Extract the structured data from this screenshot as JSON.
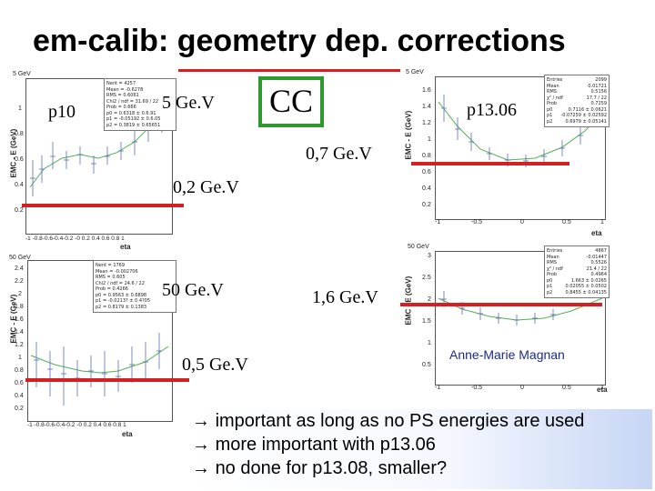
{
  "title": "em-calib: geometry dep. corrections",
  "labels": {
    "p10": "p10",
    "e5_left": "5 Ge.V",
    "cc": "CC",
    "p1306": "p13.06",
    "e07": "0,7 Ge.V",
    "e02": "0,2 Ge.V",
    "e50": "50 Ge.V",
    "e16": "1,6 Ge.V",
    "e05": "0,5 Ge.V",
    "author": "Anne-Marie Magnan"
  },
  "plots": {
    "tl": {
      "header": "5 GeV",
      "ylabel": "EMC - E (GeV)",
      "xlabel": "eta",
      "yticks": [
        "1",
        "0.8",
        "0.6",
        "0.4",
        "0.2"
      ],
      "xticks": "-1 -0.8-0.6-0.4-0.2 -0 0.2 0.4 0.6 0.8 1",
      "stats": [
        [
          "Nent = 4257",
          ""
        ],
        [
          "Mean = -0.6278",
          ""
        ],
        [
          "RMS = 0.6061",
          ""
        ],
        [
          "Chi2 / ndf = 31.69 / 22",
          ""
        ],
        [
          "Prob = 0.666",
          ""
        ],
        [
          "p0 = 0.6318 ± 0.6.91",
          ""
        ],
        [
          "p1 = -0.05192 ± 0.6.05",
          ""
        ],
        [
          "p2 = 0.3819 ± 0.65651",
          ""
        ]
      ]
    },
    "tr": {
      "header": "5 GeV",
      "ylabel": "EMC - E (GeV)",
      "xlabel": "eta",
      "yticks": [
        "1.6",
        "1.4",
        "1.2",
        "1",
        "0.8",
        "0.6",
        "0.4",
        "0.2"
      ],
      "xticks": [
        "-1",
        "-0.5",
        "0",
        "0.5",
        "1"
      ],
      "stats": [
        [
          "Entries",
          "2099"
        ],
        [
          "Mean",
          "0.01721"
        ],
        [
          "RMS",
          "0.5156"
        ],
        [
          "χ² / ndf",
          "17.7 / 22"
        ],
        [
          "Prob",
          "0.7259"
        ],
        [
          "p0",
          "0.7116 ± 0.0621"
        ],
        [
          "p1",
          "-0.07259 ± 0.02592"
        ],
        [
          "p2",
          "0.6979 ± 0.05141"
        ]
      ]
    },
    "bl": {
      "header": "50 GeV",
      "ylabel": "EMC - E (GeV)",
      "xlabel": "eta",
      "yticks": [
        "2.4",
        "2.2",
        "2",
        "1.8",
        "1.6",
        "1.4",
        "1.2",
        "1",
        "0.8",
        "0.6",
        "0.4",
        "0.2"
      ],
      "xticks": "-1 -0.8-0.6-0.4-0.2 -0 0.2 0.4 0.6 0.8 1",
      "stats": [
        [
          "Nent = 1769",
          ""
        ],
        [
          "Mean = -0.002706",
          ""
        ],
        [
          "RMS = 0.605",
          ""
        ],
        [
          "Chi2 / ndf = 24.6 / 22",
          ""
        ],
        [
          "Prob = 0.4266",
          ""
        ],
        [
          "p0 = 0.9563 ± 0.6898",
          ""
        ],
        [
          "p1 = -0.0213? ± 0.4?05",
          ""
        ],
        [
          "p2 = 0.8179 ± 0.1383",
          ""
        ]
      ]
    },
    "br": {
      "header": "50 GeV",
      "ylabel": "EMC - E (GeV)",
      "xlabel": "eta",
      "yticks": [
        "3",
        "2.5",
        "2",
        "1.5",
        "1",
        "0.5"
      ],
      "xticks": [
        "-1",
        "-0.5",
        "0",
        "0.5",
        "1"
      ],
      "stats": [
        [
          "Entries",
          "4867"
        ],
        [
          "Mean",
          "-0.01447"
        ],
        [
          "RMS",
          "0.5526"
        ],
        [
          "χ² / ndf",
          "21.4 / 22"
        ],
        [
          "Prob",
          "0.4964"
        ],
        [
          "p0",
          "1.663 ± 0.0265"
        ],
        [
          "p1",
          "0.02055 ± 0.0502"
        ],
        [
          "p2",
          "0.8455 ± 0.04135"
        ]
      ]
    }
  },
  "bullets": [
    "important as long as no PS energies are used",
    "more important with p13.06",
    "no done for p13.08, smaller?"
  ],
  "bullet_arrow": "→"
}
